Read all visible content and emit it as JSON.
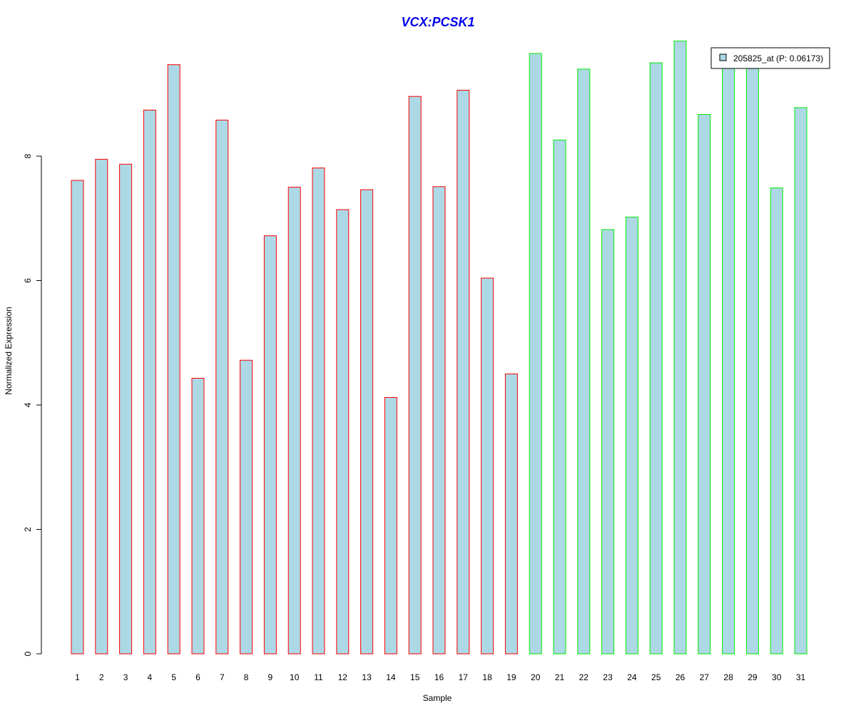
{
  "chart_data": {
    "type": "bar",
    "title": "VCX:PCSK1",
    "xlabel": "Sample",
    "ylabel": "Normalized Expression",
    "categories": [
      "1",
      "2",
      "3",
      "4",
      "5",
      "6",
      "7",
      "8",
      "9",
      "10",
      "11",
      "12",
      "13",
      "14",
      "15",
      "16",
      "17",
      "18",
      "19",
      "20",
      "21",
      "22",
      "23",
      "24",
      "25",
      "26",
      "27",
      "28",
      "29",
      "30",
      "31"
    ],
    "series": [
      {
        "name": "205825_at (P: 0.06173)",
        "values": [
          7.61,
          7.95,
          7.87,
          8.74,
          9.47,
          4.43,
          8.58,
          4.72,
          6.72,
          7.5,
          7.81,
          7.14,
          7.46,
          4.12,
          8.96,
          7.51,
          9.06,
          6.04,
          4.5,
          9.65,
          8.26,
          9.4,
          6.82,
          7.02,
          9.5,
          9.85,
          8.67,
          9.5,
          9.5,
          7.49,
          8.78
        ]
      }
    ],
    "group_border_colors": [
      "#ff0000",
      "#ff0000",
      "#ff0000",
      "#ff0000",
      "#ff0000",
      "#ff0000",
      "#ff0000",
      "#ff0000",
      "#ff0000",
      "#ff0000",
      "#ff0000",
      "#ff0000",
      "#ff0000",
      "#ff0000",
      "#ff0000",
      "#ff0000",
      "#ff0000",
      "#ff0000",
      "#ff0000",
      "#00ee00",
      "#00ee00",
      "#00ee00",
      "#00ee00",
      "#00ee00",
      "#00ee00",
      "#00ee00",
      "#00ee00",
      "#00ee00",
      "#00ee00",
      "#00ee00",
      "#00ee00"
    ],
    "bar_fill_color": "#add8e6",
    "title_color": "#0000ee",
    "yticks": [
      0,
      2,
      4,
      6,
      8
    ],
    "ylim": [
      0,
      10
    ],
    "grid": false,
    "legend_position": "top-right"
  }
}
